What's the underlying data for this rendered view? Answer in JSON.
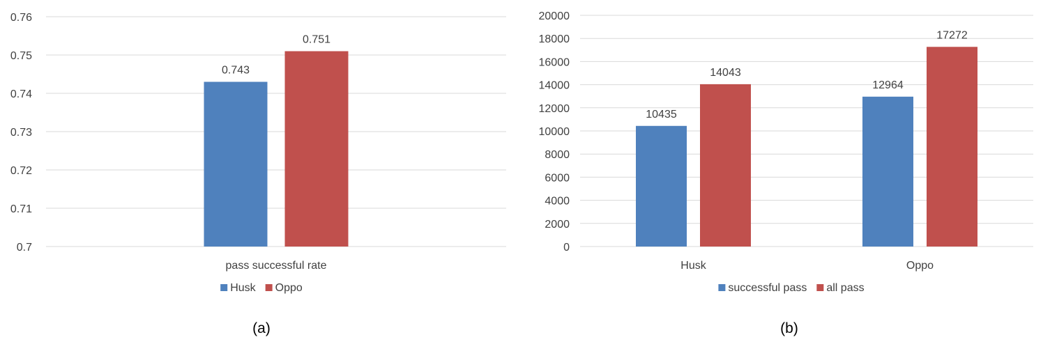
{
  "colors": {
    "series_blue": "#4f81bd",
    "series_red": "#c0504d",
    "grid": "#d9d9d9",
    "text": "#404040"
  },
  "chart_data": [
    {
      "type": "bar",
      "caption": "(a)",
      "categories": [
        "pass successful rate"
      ],
      "series": [
        {
          "name": "Husk",
          "values": [
            0.743
          ],
          "color": "#4f81bd"
        },
        {
          "name": "Oppo",
          "values": [
            0.751
          ],
          "color": "#c0504d"
        }
      ],
      "data_labels": [
        [
          "0.743"
        ],
        [
          "0.751"
        ]
      ],
      "yticks": [
        "0.7",
        "0.71",
        "0.72",
        "0.73",
        "0.74",
        "0.75",
        "0.76"
      ],
      "ylim": [
        0.7,
        0.76
      ],
      "grid": true,
      "legend": "bottom-center",
      "title": "",
      "xlabel": "",
      "ylabel": ""
    },
    {
      "type": "bar",
      "caption": "(b)",
      "categories": [
        "Husk",
        "Oppo"
      ],
      "series": [
        {
          "name": "successful pass",
          "values": [
            10435,
            12964
          ],
          "color": "#4f81bd"
        },
        {
          "name": "all pass",
          "values": [
            14043,
            17272
          ],
          "color": "#c0504d"
        }
      ],
      "data_labels": [
        [
          "10435",
          "12964"
        ],
        [
          "14043",
          "17272"
        ]
      ],
      "yticks": [
        "0",
        "2000",
        "4000",
        "6000",
        "8000",
        "10000",
        "12000",
        "14000",
        "16000",
        "18000",
        "20000"
      ],
      "ylim": [
        0,
        20000
      ],
      "grid": true,
      "legend": "bottom-center",
      "title": "",
      "xlabel": "",
      "ylabel": ""
    }
  ]
}
